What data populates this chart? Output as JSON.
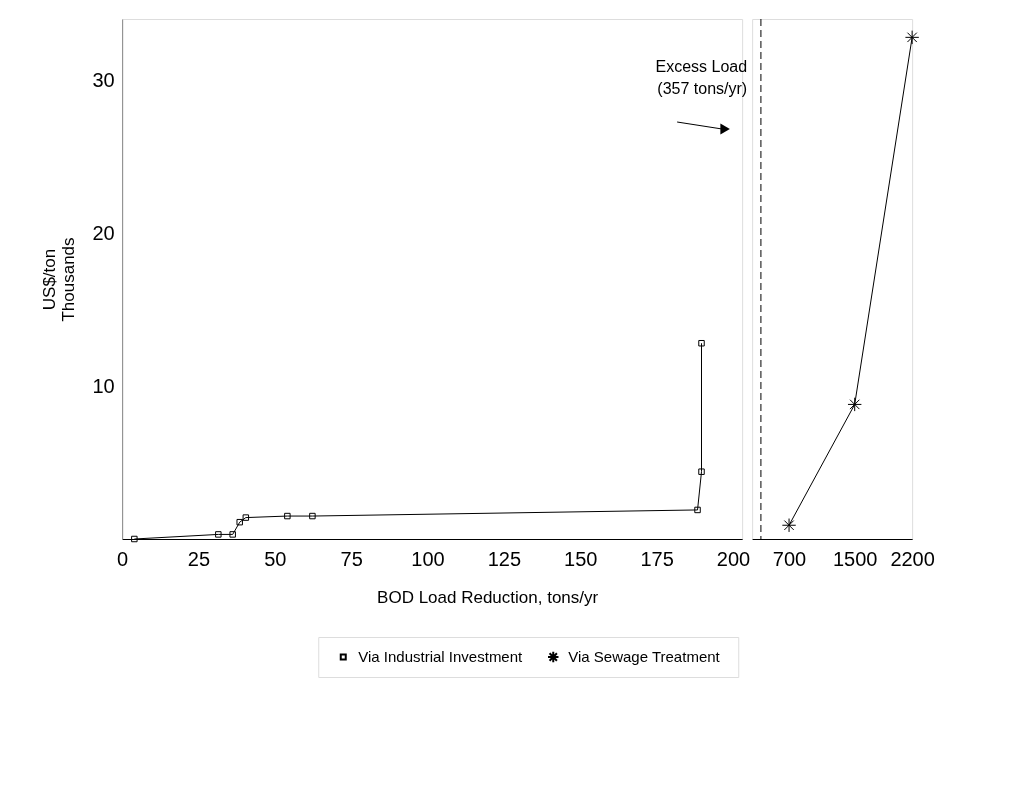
{
  "chart_data": [
    {
      "type": "line",
      "xlabel": "BOD Load Reduction, tons/yr",
      "ylabel": "US$/ton\nThousands",
      "xlim": [
        0,
        203
      ],
      "xticks": [
        0,
        25,
        50,
        75,
        100,
        125,
        150,
        175,
        200
      ],
      "ylim": [
        0,
        34
      ],
      "yticks": [
        10,
        20,
        30
      ],
      "marker": "square",
      "line_style": "solid",
      "legend": "bottom",
      "series": [
        {
          "name": "Via Industrial Investment",
          "color": "#000000",
          "x": [
            4.0,
            31.5,
            36.2,
            38.5,
            40.5,
            54.1,
            62.3,
            188.4,
            189.7,
            189.7
          ],
          "values": [
            0.0,
            0.3,
            0.3,
            1.1,
            1.4,
            1.5,
            1.5,
            1.9,
            4.4,
            12.8
          ]
        }
      ]
    },
    {
      "type": "line",
      "xlim": [
        250,
        2200
      ],
      "xticks": [
        700,
        1500,
        2200
      ],
      "ylim": [
        0,
        34
      ],
      "tick_labels": "x",
      "line_style": "solid",
      "marker": "cross",
      "legend": "bottom",
      "ref_lines": [
        {
          "axis": "x",
          "value": 357,
          "label": "Excess Load\n(357 tons/yr)",
          "color": "#000000",
          "line_style": "dashed"
        }
      ],
      "series": [
        {
          "name": "Via Sewage Treatment",
          "color": "#000000",
          "x": [
            700,
            1500,
            2200
          ],
          "values": [
            0.9,
            8.8,
            32.8
          ]
        }
      ]
    }
  ]
}
